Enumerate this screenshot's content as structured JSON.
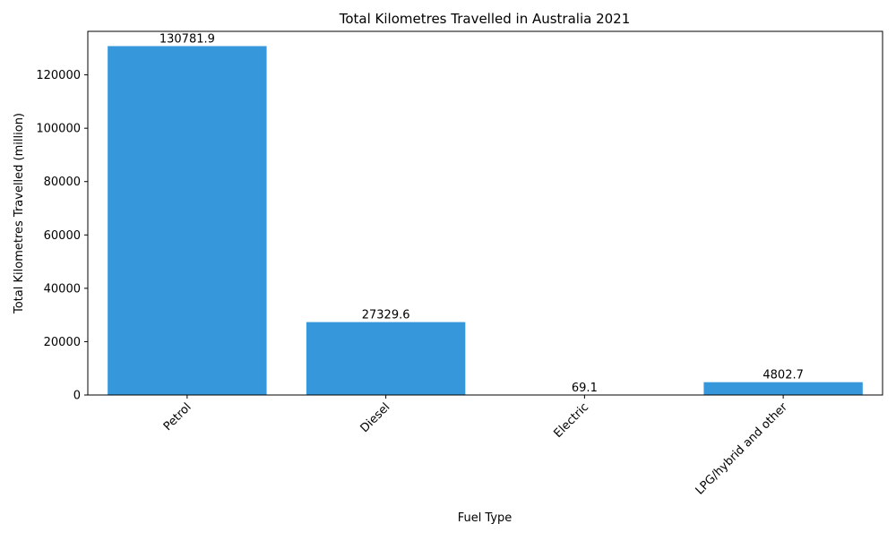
{
  "chart_data": {
    "type": "bar",
    "title": "Total Kilometres Travelled in Australia 2021",
    "xlabel": "Fuel Type",
    "ylabel": "Total Kilometres Travelled (million)",
    "categories": [
      "Petrol",
      "Diesel",
      "Electric",
      "LPG/hybrid and other"
    ],
    "values": [
      130781.9,
      27329.6,
      69.1,
      4802.7
    ],
    "data_labels": [
      "130781.9",
      "27329.6",
      "69.1",
      "4802.7"
    ],
    "ylim": [
      0,
      136315.5
    ],
    "yticks": [
      0,
      20000,
      40000,
      60000,
      80000,
      100000,
      120000
    ],
    "ytick_labels": [
      "0",
      "20000",
      "40000",
      "60000",
      "80000",
      "100000",
      "120000"
    ],
    "grid": false,
    "legend": "none",
    "bar_color": "#3698db",
    "xtick_rotation_deg": 45
  }
}
